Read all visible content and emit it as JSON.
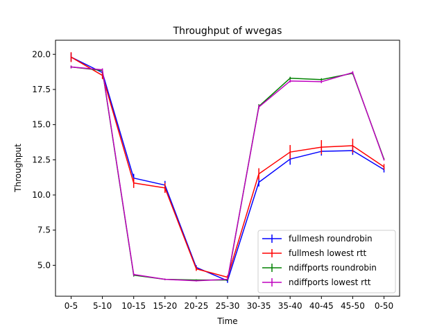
{
  "chart_data": {
    "type": "line",
    "title": "Throughput of wvegas",
    "xlabel": "Time",
    "ylabel": "Throughput",
    "categories": [
      "0-5",
      "5-10",
      "10-15",
      "15-20",
      "20-25",
      "25-30",
      "30-35",
      "35-40",
      "40-45",
      "45-50",
      "0-50"
    ],
    "ylim": [
      2.8,
      21.0
    ],
    "yticks": [
      5.0,
      7.5,
      10.0,
      12.5,
      15.0,
      17.5,
      20.0
    ],
    "ytick_labels": [
      "5.0",
      "7.5",
      "10.0",
      "12.5",
      "15.0",
      "17.5",
      "20.0"
    ],
    "grid": false,
    "legend_position": "lower-right",
    "series": [
      {
        "name": "fullmesh roundrobin",
        "color": "#0000ff",
        "values": [
          19.8,
          18.7,
          11.2,
          10.7,
          4.85,
          3.9,
          10.9,
          12.55,
          13.1,
          13.15,
          11.8
        ],
        "errors": [
          0.3,
          0.2,
          0.3,
          0.3,
          0.15,
          0.15,
          0.3,
          0.4,
          0.3,
          0.3,
          0.2
        ]
      },
      {
        "name": "fullmesh lowest rtt",
        "color": "#ff0000",
        "values": [
          19.8,
          18.5,
          10.85,
          10.5,
          4.75,
          4.15,
          11.5,
          13.05,
          13.4,
          13.5,
          12.0
        ],
        "errors": [
          0.35,
          0.25,
          0.35,
          0.35,
          0.15,
          0.15,
          0.4,
          0.5,
          0.5,
          0.5,
          0.2
        ]
      },
      {
        "name": "ndiffports roundrobin",
        "color": "#008000",
        "values": [
          19.1,
          18.85,
          4.3,
          4.0,
          3.95,
          3.95,
          16.3,
          18.3,
          18.2,
          18.65,
          12.55
        ],
        "errors": [
          0.1,
          0.1,
          0.1,
          0.05,
          0.05,
          0.05,
          0.15,
          0.1,
          0.1,
          0.1,
          0.05
        ]
      },
      {
        "name": "ndiffports lowest rtt",
        "color": "#bf00bf",
        "values": [
          19.1,
          18.9,
          4.35,
          4.0,
          3.9,
          4.0,
          16.25,
          18.1,
          18.05,
          18.7,
          12.5
        ],
        "errors": [
          0.1,
          0.1,
          0.1,
          0.05,
          0.05,
          0.05,
          0.15,
          0.1,
          0.1,
          0.1,
          0.05
        ]
      }
    ]
  }
}
